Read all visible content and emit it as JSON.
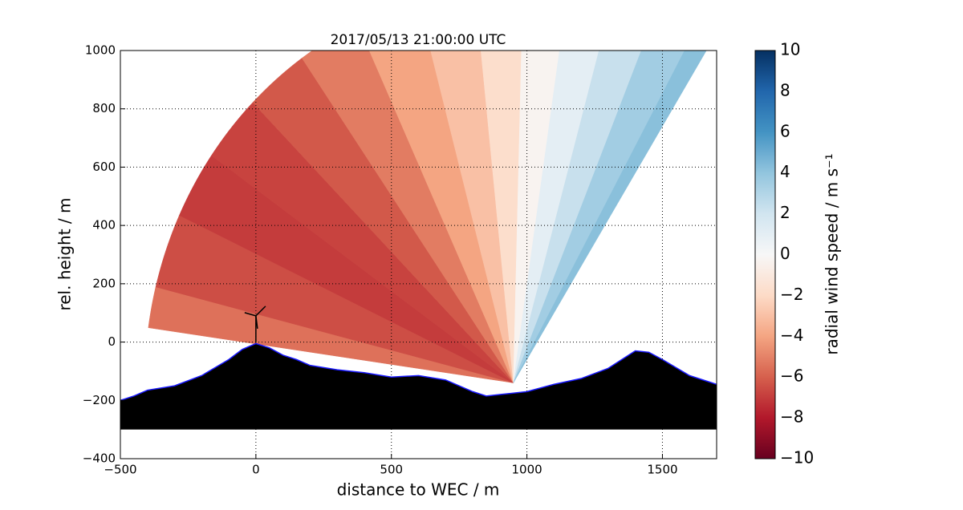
{
  "chart_data": {
    "type": "lidar_scan",
    "title": "2017/05/13 21:00:00 UTC",
    "x_label": "distance to WEC / m",
    "y_label": "rel. height / m",
    "colorbar_label": "radial wind speed / m s⁻¹",
    "xlim": [
      -500,
      1700
    ],
    "ylim": [
      -400,
      1000
    ],
    "xticks": [
      {
        "value": -500,
        "label": "−500"
      },
      0,
      500,
      1000,
      1500
    ],
    "yticks": [
      {
        "value": -400,
        "label": "−400"
      },
      {
        "value": -200,
        "label": "−200"
      },
      0,
      200,
      400,
      600,
      800,
      1000
    ],
    "clim": [
      -10,
      10
    ],
    "cticks": [
      {
        "value": -10,
        "label": "−10"
      },
      {
        "value": -8,
        "label": "−8"
      },
      {
        "value": -6,
        "label": "−6"
      },
      {
        "value": -4,
        "label": "−4"
      },
      {
        "value": -2,
        "label": "−2"
      },
      0,
      2,
      4,
      6,
      8,
      10
    ],
    "colormap": "RdBu",
    "grid": true,
    "lidar_position": [
      950,
      -140
    ],
    "range": 1360,
    "azimuth": [
      172,
      160,
      150,
      140,
      130,
      120,
      110,
      100,
      92,
      85,
      78,
      71,
      64,
      58
    ],
    "radial_speed": [
      -5.5,
      -6.5,
      -7,
      -6.8,
      -6.2,
      -5.2,
      -4,
      -3,
      -1.8,
      -0.3,
      1,
      2.3,
      3.5,
      4.2
    ],
    "terrain_base": -300,
    "terrain_x": [
      -500,
      -450,
      -400,
      -300,
      -200,
      -100,
      -50,
      0,
      50,
      100,
      150,
      200,
      300,
      400,
      500,
      600,
      700,
      800,
      850,
      900,
      1000,
      1100,
      1200,
      1300,
      1400,
      1450,
      1500,
      1600,
      1700
    ],
    "terrain_height": [
      -200,
      -185,
      -165,
      -150,
      -115,
      -60,
      -25,
      -5,
      -20,
      -45,
      -60,
      -80,
      -95,
      -105,
      -120,
      -115,
      -130,
      -170,
      -185,
      -180,
      -170,
      -145,
      -125,
      -90,
      -30,
      -35,
      -60,
      -115,
      -145
    ]
  }
}
